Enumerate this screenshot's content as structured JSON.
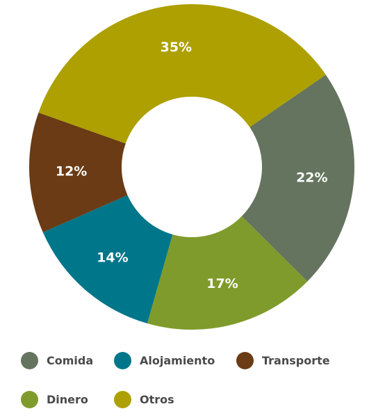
{
  "chart_data": {
    "type": "pie",
    "title": "",
    "slices": [
      {
        "label": "Comida",
        "value": 22,
        "display": "22%",
        "color": "#65745f"
      },
      {
        "label": "Dinero",
        "value": 17,
        "display": "17%",
        "color": "#7f9b2b"
      },
      {
        "label": "Alojamiento",
        "value": 14,
        "display": "14%",
        "color": "#00768a"
      },
      {
        "label": "Transporte",
        "value": 12,
        "display": "12%",
        "color": "#6a3b14"
      },
      {
        "label": "Otros",
        "value": 35,
        "display": "35%",
        "color": "#ada000"
      }
    ],
    "legend": {
      "placement": "bottom",
      "items": [
        {
          "label": "Comida",
          "color": "#65745f"
        },
        {
          "label": "Alojamiento",
          "color": "#00768a"
        },
        {
          "label": "Transporte",
          "color": "#6a3b14"
        },
        {
          "label": "Dinero",
          "color": "#7f9b2b"
        },
        {
          "label": "Otros",
          "color": "#ada000"
        }
      ]
    }
  }
}
